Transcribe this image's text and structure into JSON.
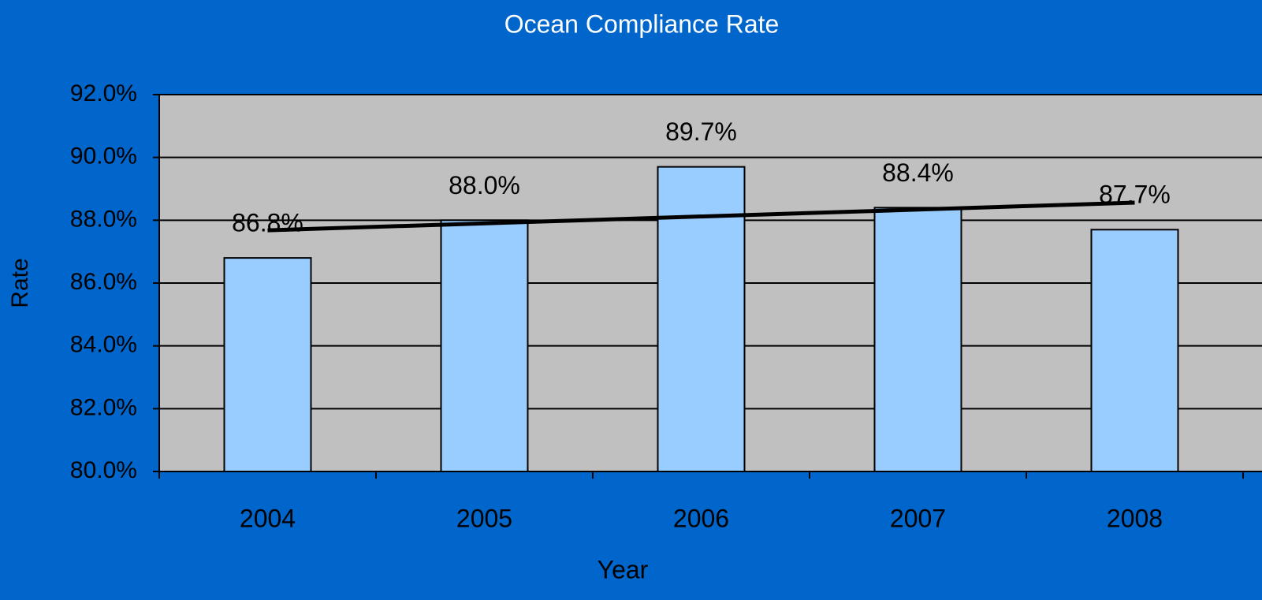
{
  "chart_data": {
    "type": "bar",
    "title": "Ocean Compliance Rate",
    "x_label": "Year",
    "y_label": "Rate",
    "categories": [
      "2004",
      "2005",
      "2006",
      "2007",
      "2008"
    ],
    "values": [
      86.8,
      88.0,
      89.7,
      88.4,
      87.7
    ],
    "value_labels": [
      "86.8%",
      "88.0%",
      "89.7%",
      "88.4%",
      "87.7%"
    ],
    "color": "#99ccff",
    "trendline": "linear",
    "ylim": [
      80,
      92
    ],
    "yticks": [
      {
        "value": 80,
        "label": "80.0%"
      },
      {
        "value": 82,
        "label": "82.0%"
      },
      {
        "value": 84,
        "label": "84.0%"
      },
      {
        "value": 86,
        "label": "86.0%"
      },
      {
        "value": 88,
        "label": "88.0%"
      },
      {
        "value": 90,
        "label": "90.0%"
      },
      {
        "value": 92,
        "label": "92.0%"
      }
    ],
    "grid": true
  }
}
